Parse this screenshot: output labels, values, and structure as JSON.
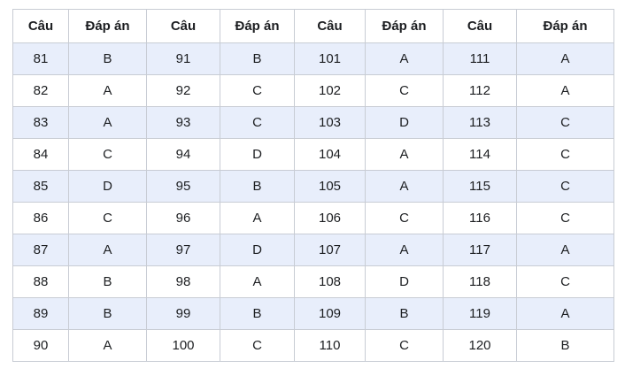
{
  "table": {
    "headers": [
      "Câu",
      "Đáp án",
      "Câu",
      "Đáp án",
      "Câu",
      "Đáp án",
      "Câu",
      "Đáp án"
    ],
    "rows": [
      [
        "81",
        "B",
        "91",
        "B",
        "101",
        "A",
        "111",
        "A"
      ],
      [
        "82",
        "A",
        "92",
        "C",
        "102",
        "C",
        "112",
        "A"
      ],
      [
        "83",
        "A",
        "93",
        "C",
        "103",
        "D",
        "113",
        "C"
      ],
      [
        "84",
        "C",
        "94",
        "D",
        "104",
        "A",
        "114",
        "C"
      ],
      [
        "85",
        "D",
        "95",
        "B",
        "105",
        "A",
        "115",
        "C"
      ],
      [
        "86",
        "C",
        "96",
        "A",
        "106",
        "C",
        "116",
        "C"
      ],
      [
        "87",
        "A",
        "97",
        "D",
        "107",
        "A",
        "117",
        "A"
      ],
      [
        "88",
        "B",
        "98",
        "A",
        "108",
        "D",
        "118",
        "C"
      ],
      [
        "89",
        "B",
        "99",
        "B",
        "109",
        "B",
        "119",
        "A"
      ],
      [
        "90",
        "A",
        "100",
        "C",
        "110",
        "C",
        "120",
        "B"
      ]
    ],
    "colors": {
      "stripe_row_bg": "#e8eefb",
      "plain_row_bg": "#ffffff",
      "border": "#c8ccd4",
      "text": "#1c1e21"
    }
  }
}
